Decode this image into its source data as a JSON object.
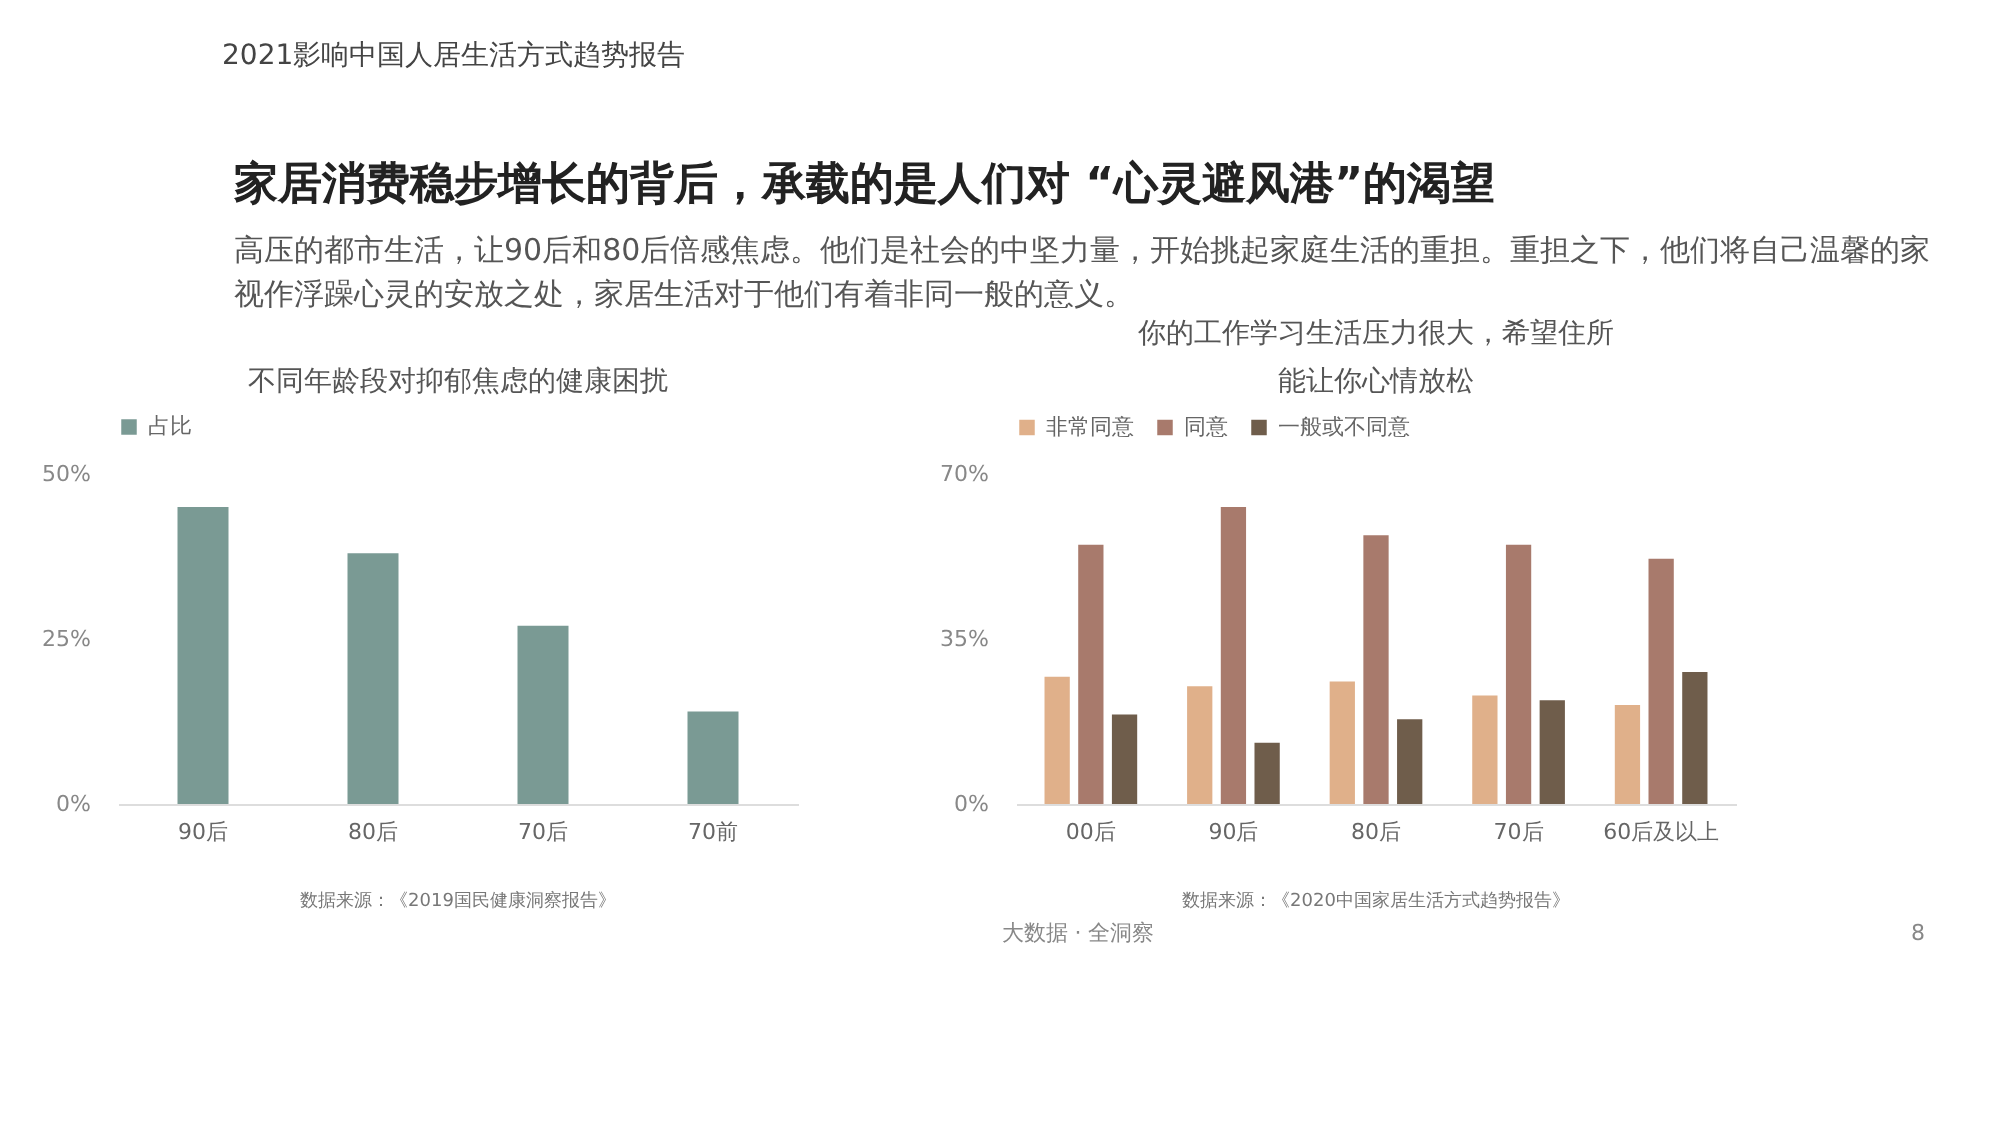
{
  "chart_data": [
    {
      "type": "other",
      "title": "家居消费稳步增长的背后，承载的是人们对 “心灵避风港”的渴望",
      "subtitle": "高压的都市生活，让90后和80后倍感焦虑。他们是社会的中坚力量，开始挑起家庭生活的重担。重担之下，他们将自己温馨的家视作浮躁心灵的安放之处，家居生活对于他们有着非同一般的意义。",
      "annotations": [
        "2021影响中国人居生活方式趋势报告",
        "大数据 · 全洞察",
        "8"
      ]
    },
    {
      "type": "bar",
      "title": "不同年龄段对抑郁焦虑的健康困扰",
      "categories": [
        "90后",
        "80后",
        "70后",
        "70前"
      ],
      "series": [
        {
          "name": "占比",
          "color": "#7a9a94",
          "values": [
            45,
            38,
            27,
            14
          ]
        }
      ],
      "ylim": [
        0,
        50
      ],
      "yticks": [
        {
          "value": 0,
          "label": "0%"
        },
        {
          "value": 25,
          "label": "25%"
        },
        {
          "value": 50,
          "label": "50%"
        }
      ],
      "grid": false,
      "legend": "top",
      "annotations": [
        "数据来源：《2019国民健康洞察报告》"
      ]
    },
    {
      "type": "bar",
      "title": "你的工作学习生活压力很大，希望住所能让你心情放松",
      "categories": [
        "00后",
        "90后",
        "80后",
        "70后",
        "60后及以上"
      ],
      "series": [
        {
          "name": "非常同意",
          "color": "#e0b08a",
          "values": [
            27,
            25,
            26,
            23,
            21
          ]
        },
        {
          "name": "同意",
          "color": "#a87a6c",
          "values": [
            55,
            63,
            57,
            55,
            52
          ]
        },
        {
          "name": "一般或不同意",
          "color": "#6f5d4b",
          "values": [
            19,
            13,
            18,
            22,
            28
          ]
        }
      ],
      "ylim": [
        0,
        70
      ],
      "yticks": [
        {
          "value": 0,
          "label": "0%"
        },
        {
          "value": 35,
          "label": "35%"
        },
        {
          "value": 70,
          "label": "70%"
        }
      ],
      "grid": false,
      "legend": "top",
      "annotations": [
        "数据来源：《2020中国家居生活方式趋势报告》"
      ]
    }
  ]
}
